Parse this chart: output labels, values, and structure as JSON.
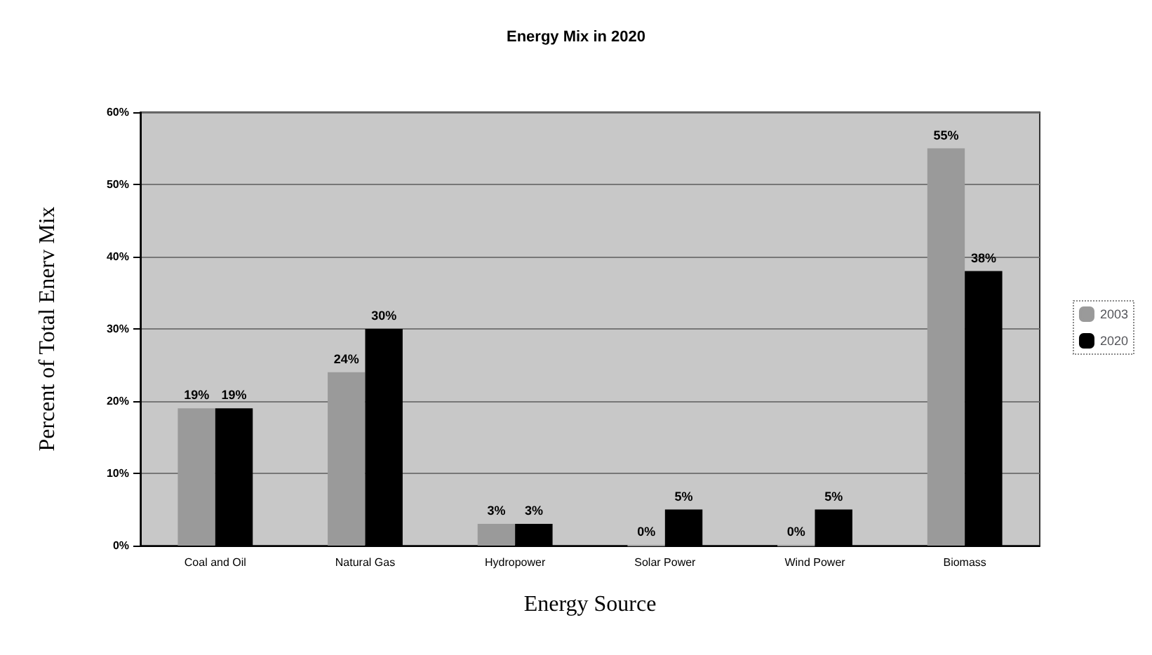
{
  "chart_data": {
    "type": "bar",
    "title": "Energy Mix in 2020",
    "xlabel": "Energy Source",
    "ylabel": "Percent of Total Enerv Mix",
    "categories": [
      "Coal and Oil",
      "Natural Gas",
      "Hydropower",
      "Solar Power",
      "Wind Power",
      "Biomass"
    ],
    "series": [
      {
        "name": "2003",
        "color": "#9a9a9a",
        "values": [
          19,
          24,
          3,
          0,
          0,
          55
        ],
        "value_labels": [
          "19%",
          "24%",
          "3%",
          "0%",
          "0%",
          "55%"
        ]
      },
      {
        "name": "2020",
        "color": "#000000",
        "values": [
          19,
          30,
          3,
          5,
          5,
          38
        ],
        "value_labels": [
          "19%",
          "30%",
          "3%",
          "5%",
          "5%",
          "38%"
        ]
      }
    ],
    "ylim": [
      0,
      60
    ],
    "yticks": [
      {
        "value": 0,
        "label": "0%"
      },
      {
        "value": 10,
        "label": "10%"
      },
      {
        "value": 20,
        "label": "20%"
      },
      {
        "value": 30,
        "label": "30%"
      },
      {
        "value": 40,
        "label": "40%"
      },
      {
        "value": 50,
        "label": "50%"
      },
      {
        "value": 60,
        "label": "60%"
      }
    ],
    "grid": "y",
    "legend": "right"
  }
}
